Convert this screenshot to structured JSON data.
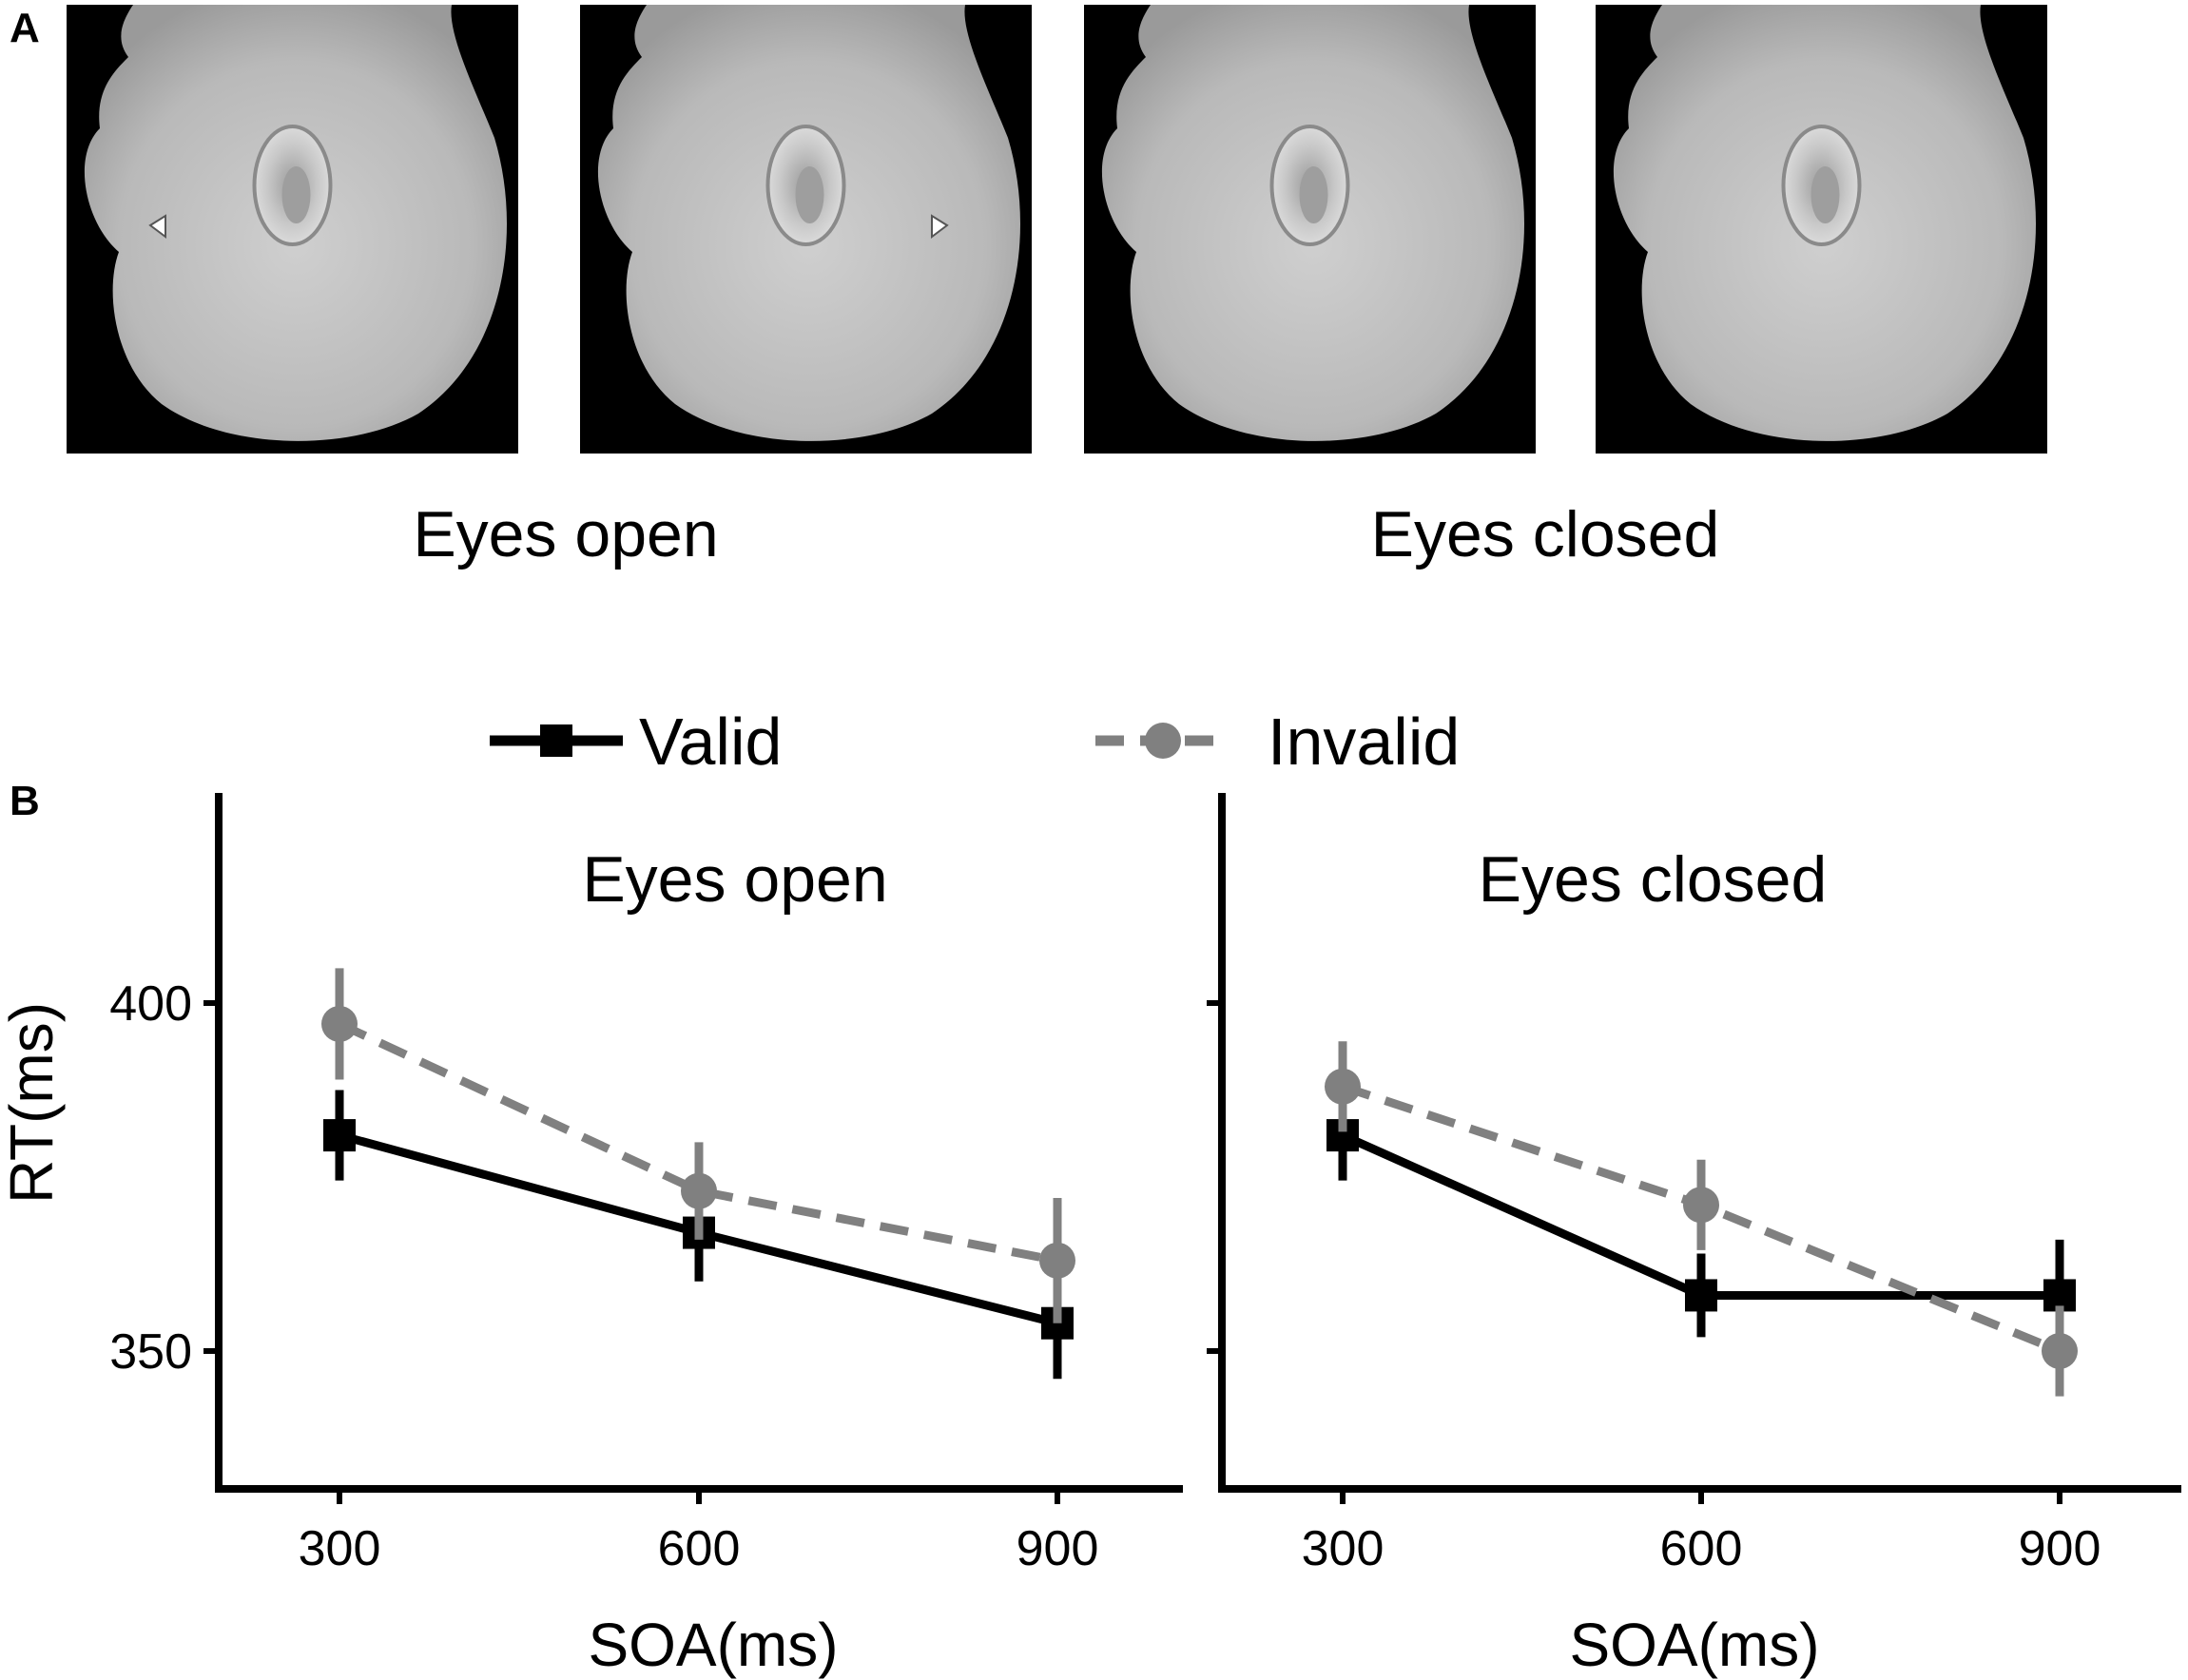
{
  "panel_a": {
    "letter": "A",
    "condition_labels": [
      "Eyes open",
      "Eyes closed"
    ],
    "stimuli": [
      {
        "condition": "Eyes open",
        "eye_side": "left"
      },
      {
        "condition": "Eyes open",
        "eye_side": "right"
      },
      {
        "condition": "Eyes closed",
        "eye_side": "left"
      },
      {
        "condition": "Eyes closed",
        "eye_side": "right"
      }
    ]
  },
  "panel_b": {
    "letter": "B",
    "legend": [
      {
        "label": "Valid",
        "color": "#000000",
        "dash": "solid",
        "marker": "square"
      },
      {
        "label": "Invalid",
        "color": "#808080",
        "dash": "dashed",
        "marker": "circle"
      }
    ]
  },
  "chart_data": [
    {
      "type": "line",
      "title": "Eyes open",
      "xlabel": "SOA(ms)",
      "ylabel": "RT(ms)",
      "x": [
        300,
        600,
        900
      ],
      "xticks": [
        "300",
        "600",
        "900"
      ],
      "yticks": [
        "350",
        "400"
      ],
      "ylim": [
        330,
        430
      ],
      "series": [
        {
          "name": "Valid",
          "color": "#000000",
          "y": [
            381,
            367,
            354
          ],
          "err": [
            6.5,
            7,
            8
          ]
        },
        {
          "name": "Invalid",
          "color": "#808080",
          "y": [
            397,
            373,
            363
          ],
          "err": [
            8,
            7,
            9
          ]
        }
      ]
    },
    {
      "type": "line",
      "title": "Eyes closed",
      "xlabel": "SOA(ms)",
      "ylabel": "",
      "x": [
        300,
        600,
        900
      ],
      "xticks": [
        "300",
        "600",
        "900"
      ],
      "yticks": [],
      "ylim": [
        330,
        430
      ],
      "series": [
        {
          "name": "Valid",
          "color": "#000000",
          "y": [
            381,
            358,
            358
          ],
          "err": [
            6.5,
            6,
            8
          ]
        },
        {
          "name": "Invalid",
          "color": "#808080",
          "y": [
            388,
            371,
            350
          ],
          "err": [
            6.5,
            6.5,
            6.5
          ]
        }
      ]
    }
  ]
}
